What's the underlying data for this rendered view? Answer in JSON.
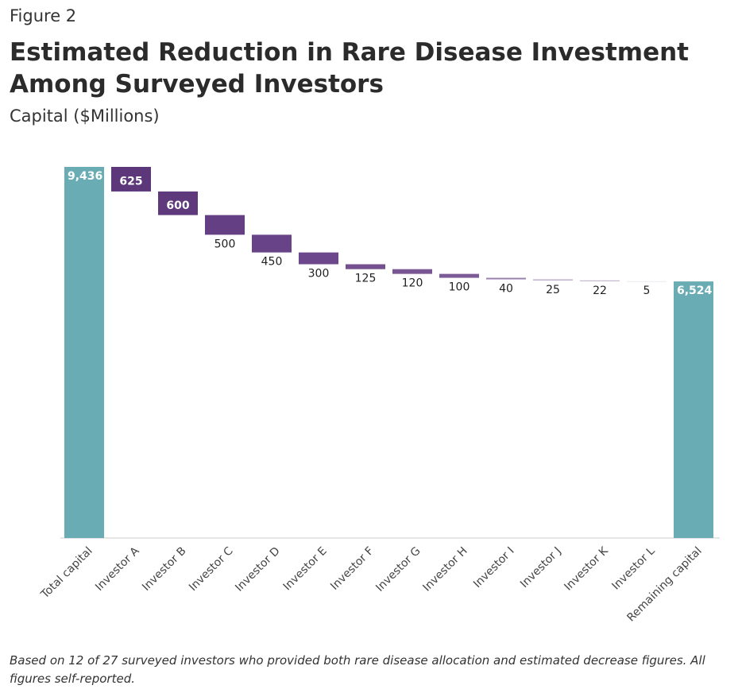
{
  "figure_label": "Figure 2",
  "chart_data": {
    "type": "waterfall",
    "title": "Estimated Reduction in Rare Disease Investment Among Surveyed Investors",
    "subtitle": "Capital ($Millions)",
    "categories": [
      "Total capital",
      "Investor A",
      "Investor B",
      "Investor C",
      "Investor D",
      "Investor E",
      "Investor F",
      "Investor G",
      "Investor H",
      "Investor I",
      "Investor J",
      "Investor K",
      "Investor L",
      "Remaining capital"
    ],
    "measure": [
      "total",
      "decrease",
      "decrease",
      "decrease",
      "decrease",
      "decrease",
      "decrease",
      "decrease",
      "decrease",
      "decrease",
      "decrease",
      "decrease",
      "decrease",
      "total"
    ],
    "values": [
      9436,
      625,
      600,
      500,
      450,
      300,
      125,
      120,
      100,
      40,
      25,
      22,
      5,
      6524
    ],
    "value_labels": [
      "9,436",
      "625",
      "600",
      "500",
      "450",
      "300",
      "125",
      "120",
      "100",
      "40",
      "25",
      "22",
      "5",
      "6,524"
    ],
    "colors": [
      "#6aacb4",
      "#5c3779",
      "#5e397b",
      "#643f83",
      "#684387",
      "#6c478b",
      "#74508f",
      "#785593",
      "#7d5b97",
      "#9a80ad",
      "#b19cc0",
      "#bfaecb",
      "#ddd3e3",
      "#6aacb4"
    ],
    "note": "Based on 12 of 27 surveyed investors who provided both rare disease allocation and estimated decrease figures. All figures self-reported."
  }
}
